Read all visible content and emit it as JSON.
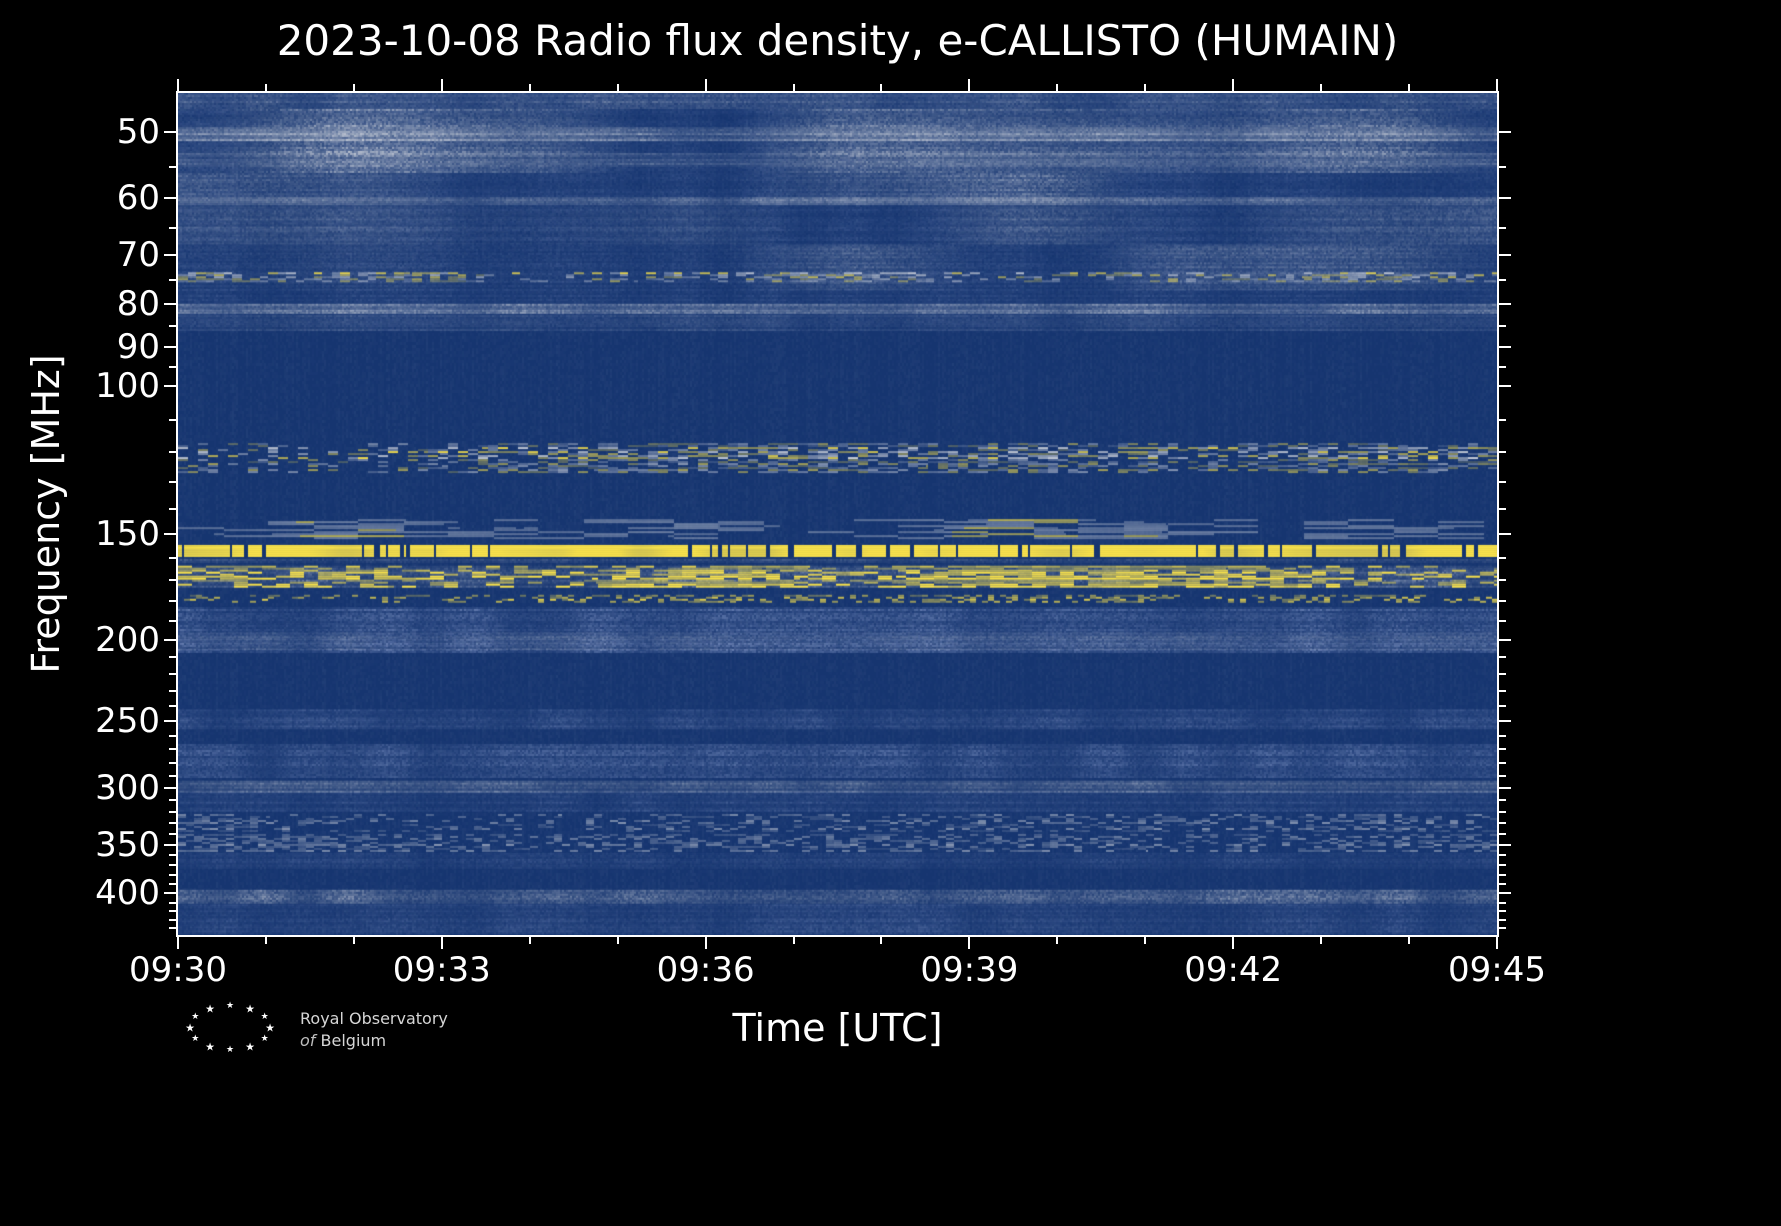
{
  "figure": {
    "title": "2023-10-08 Radio flux density, e-CALLISTO (HUMAIN)",
    "xlabel": "Time [UTC]",
    "ylabel": "Frequency [MHz]",
    "background": "#000000",
    "frame_color": "#ffffff",
    "text_color": "#ffffff"
  },
  "logo": {
    "line1": "Royal Observatory",
    "line2_italic": "of",
    "line2": "Belgium",
    "star_glyph": "★"
  },
  "chart_data": {
    "type": "heatmap",
    "subtype": "radio-spectrogram",
    "x_ticks": [
      "09:30",
      "09:33",
      "09:36",
      "09:39",
      "09:42",
      "09:45"
    ],
    "x_tick_minutes": [
      0,
      3,
      6,
      9,
      12,
      15
    ],
    "x_minor_step_minutes": 1,
    "x_range_utc": [
      "09:30",
      "09:45"
    ],
    "y_scale": "log",
    "y_inverted": true,
    "y_unit": "MHz",
    "y_min": 45,
    "y_max": 448,
    "y_ticks": [
      50,
      60,
      70,
      80,
      90,
      100,
      150,
      200,
      250,
      300,
      350,
      400
    ],
    "y_minor_ticks": [
      55,
      65,
      75,
      85,
      95,
      110,
      120,
      130,
      140,
      160,
      170,
      180,
      190,
      210,
      220,
      230,
      240,
      260,
      270,
      280,
      290,
      310,
      320,
      330,
      340,
      360,
      370,
      380,
      390,
      410,
      420,
      430,
      440
    ],
    "colors": {
      "base": "#163570",
      "gray": "#ccd1da",
      "yellow": "#f8e14b",
      "bluegray": "#7e93c4"
    },
    "bands": [
      {
        "f_lo": 45,
        "f_hi": 86,
        "style": "noise",
        "color": "bluegray",
        "intensity": 0.1,
        "desc": "faint wash over whole low-frequency region"
      },
      {
        "f_lo": 45,
        "f_hi": 47,
        "style": "noise",
        "color": "gray",
        "intensity": 0.2,
        "desc": "speckle under top frame"
      },
      {
        "f_lo": 47,
        "f_hi": 56,
        "style": "patch",
        "color": "gray",
        "intensity": 0.3,
        "desc": "blotchy band around 50 MHz"
      },
      {
        "f_lo": 49.4,
        "f_hi": 51.2,
        "style": "line",
        "color": "gray",
        "intensity": 0.4,
        "desc": "light line at 50 MHz"
      },
      {
        "f_lo": 53,
        "f_hi": 55,
        "style": "line",
        "color": "gray",
        "intensity": 0.18
      },
      {
        "f_lo": 56,
        "f_hi": 61,
        "style": "patch",
        "color": "gray",
        "intensity": 0.22,
        "desc": "time-varying gray patches 56-61 MHz"
      },
      {
        "f_lo": 59.8,
        "f_hi": 61.2,
        "style": "line",
        "color": "gray",
        "intensity": 0.3,
        "desc": "line at 60 MHz"
      },
      {
        "f_lo": 61,
        "f_hi": 68,
        "style": "patch",
        "color": "gray",
        "intensity": 0.13
      },
      {
        "f_lo": 68,
        "f_hi": 77,
        "style": "patch",
        "color": "gray",
        "intensity": 0.27,
        "desc": "band around 70-76 MHz"
      },
      {
        "f_lo": 73.4,
        "f_hi": 75.6,
        "style": "speckle",
        "color": "mixed",
        "intensity": 0.6,
        "density": 0.45,
        "dash": 9,
        "desc": "yellowish dashes near 74 MHz"
      },
      {
        "f_lo": 80,
        "f_hi": 82,
        "style": "line",
        "color": "gray",
        "intensity": 0.5,
        "desc": "continuous light line at 81 MHz"
      },
      {
        "f_lo": 82.5,
        "f_hi": 86,
        "style": "noise",
        "color": "gray",
        "intensity": 0.08
      },
      {
        "f_lo": 117,
        "f_hi": 127,
        "style": "speckle",
        "color": "mixed",
        "intensity": 0.65,
        "density": 0.4,
        "dash": 10,
        "desc": "intermittent speckle band with yellow bursts ~118-127 MHz"
      },
      {
        "f_lo": 144,
        "f_hi": 152,
        "style": "segments",
        "color": "mixed",
        "intensity": 0.6,
        "desc": "gray/yellow segments ~145-152 MHz"
      },
      {
        "f_lo": 154.5,
        "f_hi": 159.5,
        "style": "solid",
        "color": "yellow",
        "intensity": 1.0,
        "desc": "bright continuous yellow RFI line with dark notches"
      },
      {
        "f_lo": 160.5,
        "f_hi": 162.5,
        "style": "noise",
        "color": "gray",
        "intensity": 0.12
      },
      {
        "f_lo": 163.5,
        "f_hi": 174,
        "style": "noise",
        "color": "gray",
        "intensity": 0.2
      },
      {
        "f_lo": 163.5,
        "f_hi": 174,
        "style": "speckle",
        "color": "yellow",
        "intensity": 0.92,
        "density": 0.55,
        "dash": 14,
        "desc": "heavy broken yellow band ~164-174 MHz"
      },
      {
        "f_lo": 177,
        "f_hi": 181,
        "style": "speckle",
        "color": "yellow",
        "intensity": 0.6,
        "density": 0.3,
        "dash": 6,
        "desc": "dotted yellow row ~179 MHz"
      },
      {
        "f_lo": 183,
        "f_hi": 207,
        "style": "noise",
        "color": "bluegray",
        "intensity": 0.3,
        "desc": "medium striped noise band to ~205 MHz"
      },
      {
        "f_lo": 196,
        "f_hi": 206,
        "style": "noise",
        "color": "gray",
        "intensity": 0.14
      },
      {
        "f_lo": 242,
        "f_hi": 256,
        "style": "noise",
        "color": "bluegray",
        "intensity": 0.2,
        "desc": "faint band near 250 MHz"
      },
      {
        "f_lo": 266,
        "f_hi": 292,
        "style": "noise",
        "color": "bluegray",
        "intensity": 0.22
      },
      {
        "f_lo": 294,
        "f_hi": 303,
        "style": "line",
        "color": "gray",
        "intensity": 0.3,
        "desc": "speckly line near 300 MHz"
      },
      {
        "f_lo": 303,
        "f_hi": 320,
        "style": "noise",
        "color": "bluegray",
        "intensity": 0.15
      },
      {
        "f_lo": 322,
        "f_hi": 338,
        "style": "speckle",
        "color": "gray",
        "intensity": 0.4,
        "density": 0.35,
        "dash": 8,
        "desc": "speckle rows ~330 MHz"
      },
      {
        "f_lo": 340,
        "f_hi": 357,
        "style": "speckle",
        "color": "gray",
        "intensity": 0.45,
        "density": 0.4,
        "dash": 8,
        "desc": "speckle rows ~350 MHz"
      },
      {
        "f_lo": 358,
        "f_hi": 374,
        "style": "noise",
        "color": "bluegray",
        "intensity": 0.12
      },
      {
        "f_lo": 396,
        "f_hi": 412,
        "style": "noise",
        "color": "gray",
        "intensity": 0.24,
        "desc": "noise line just above 400 MHz"
      },
      {
        "f_lo": 412,
        "f_hi": 446,
        "style": "noise",
        "color": "bluegray",
        "intensity": 0.16,
        "desc": "bottom faint speckle region"
      }
    ]
  }
}
